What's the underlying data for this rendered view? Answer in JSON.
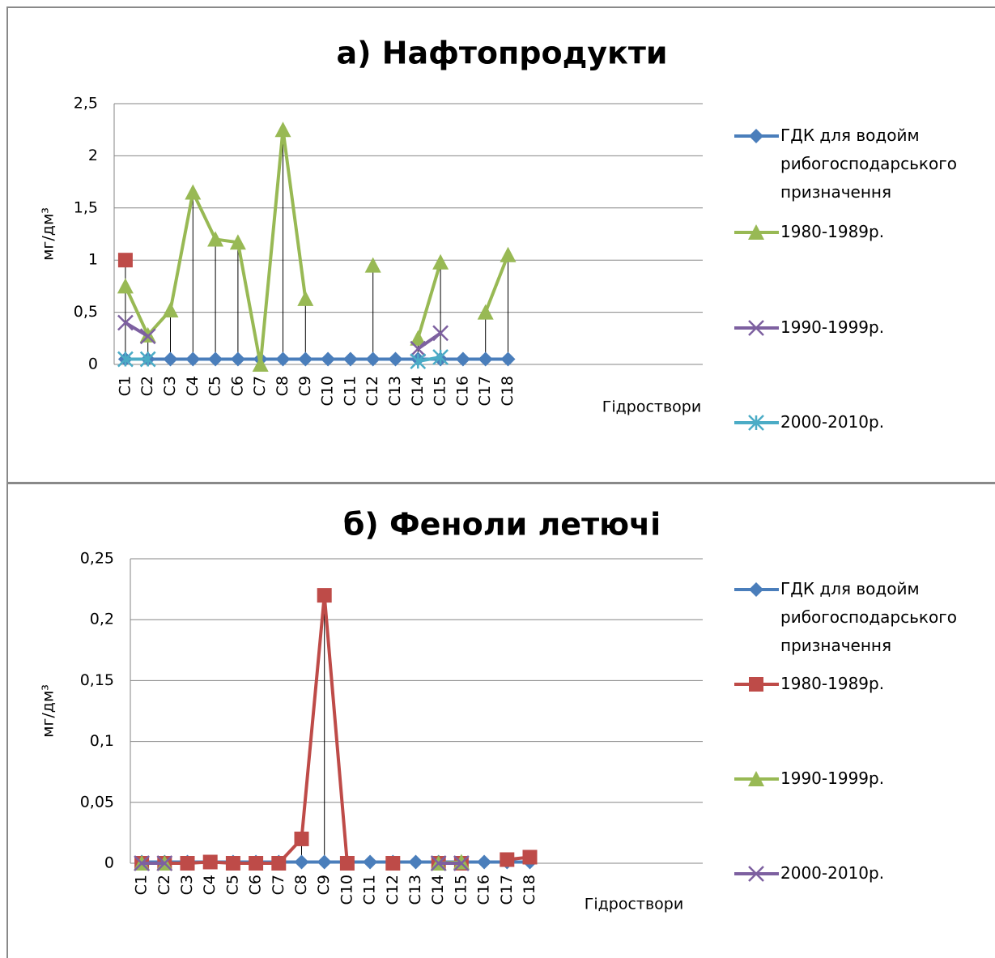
{
  "chart_data": [
    {
      "type": "line",
      "title": "а) Нафтопродукти",
      "x_label": "Гідроствори",
      "y_label": "мг/дм³",
      "categories": [
        "C1",
        "C2",
        "C3",
        "C4",
        "C5",
        "C6",
        "C7",
        "C8",
        "C9",
        "C10",
        "C11",
        "C12",
        "C13",
        "C14",
        "C15",
        "C16",
        "C17",
        "C18"
      ],
      "ylim": [
        0,
        2.5
      ],
      "yticks": [
        0,
        {
          "value": 0.5,
          "label": "0,5"
        },
        1,
        {
          "value": 1.5,
          "label": "1,5"
        },
        2,
        {
          "value": 2.5,
          "label": "2,5"
        }
      ],
      "grid": true,
      "high_low_lines": true,
      "legend": "right",
      "series": [
        {
          "name": "ГДК для водойм рибогосподарського призначення",
          "color": "#4a7ebb",
          "marker": "diamond",
          "values": [
            0.05,
            0.05,
            0.05,
            0.05,
            0.05,
            0.05,
            0.05,
            0.05,
            0.05,
            0.05,
            0.05,
            0.05,
            0.05,
            0.05,
            0.05,
            0.05,
            0.05,
            0.05
          ]
        },
        {
          "name": "1980-1989р.",
          "color": "#98b954",
          "marker": "triangle",
          "values": [
            0.75,
            0.28,
            0.52,
            1.65,
            1.2,
            1.17,
            0,
            2.25,
            0.63,
            null,
            null,
            0.95,
            null,
            0.25,
            0.98,
            null,
            0.5,
            1.05
          ]
        },
        {
          "name": "1990-1999р.",
          "color": "#7d60a0",
          "marker": "x",
          "values": [
            0.4,
            0.27,
            null,
            null,
            null,
            null,
            null,
            null,
            null,
            null,
            null,
            null,
            null,
            0.15,
            0.3,
            null,
            null,
            null
          ]
        },
        {
          "name": "2000-2010р.",
          "color": "#4bacc6",
          "marker": "star",
          "values": [
            0.05,
            0.05,
            null,
            null,
            null,
            null,
            null,
            null,
            null,
            null,
            null,
            null,
            null,
            0.03,
            0.07,
            null,
            null,
            null
          ]
        },
        {
          "color": "#be4b48",
          "marker": "square",
          "values": [
            1,
            null,
            null,
            null,
            null,
            null,
            null,
            null,
            null,
            null,
            null,
            null,
            null,
            null,
            null,
            null,
            null,
            null
          ]
        }
      ]
    },
    {
      "type": "line",
      "title": "б) Феноли летючі",
      "x_label": "Гідроствори",
      "y_label": "мг/дм³",
      "categories": [
        "C1",
        "C2",
        "C3",
        "C4",
        "C5",
        "C6",
        "C7",
        "C8",
        "C9",
        "C10",
        "C11",
        "C12",
        "C13",
        "C14",
        "C15",
        "C16",
        "C17",
        "C18"
      ],
      "ylim": [
        0,
        0.25
      ],
      "yticks": [
        0,
        {
          "value": 0.05,
          "label": "0,05"
        },
        {
          "value": 0.1,
          "label": "0,1"
        },
        {
          "value": 0.15,
          "label": "0,15"
        },
        {
          "value": 0.2,
          "label": "0,2"
        },
        {
          "value": 0.25,
          "label": "0,25"
        }
      ],
      "grid": true,
      "high_low_lines": true,
      "legend": "right",
      "series": [
        {
          "name": "ГДК для водойм рибогосподарського призначення",
          "color": "#4a7ebb",
          "marker": "diamond",
          "values": [
            0.001,
            0.001,
            0.001,
            0.001,
            0.001,
            0.001,
            0.001,
            0.001,
            0.001,
            0.001,
            0.001,
            0.001,
            0.001,
            0.001,
            0.001,
            0.001,
            0.001,
            0.001
          ]
        },
        {
          "name": "1980-1989р.",
          "color": "#be4b48",
          "marker": "square",
          "values": [
            0,
            0,
            0,
            0.001,
            0,
            0,
            0,
            0.02,
            0.22,
            0,
            null,
            0,
            null,
            0,
            0,
            null,
            0.003,
            0.005
          ]
        },
        {
          "name": "1990-1999р.",
          "color": "#98b954",
          "marker": "triangle",
          "values": [
            0,
            0,
            null,
            null,
            null,
            null,
            null,
            null,
            null,
            null,
            null,
            null,
            null,
            0,
            0.001,
            null,
            null,
            null
          ]
        },
        {
          "name": "2000-2010р.",
          "color": "#7d60a0",
          "marker": "x",
          "values": [
            0,
            0,
            null,
            null,
            null,
            null,
            null,
            null,
            null,
            null,
            null,
            null,
            null,
            0,
            0,
            null,
            null,
            null
          ]
        }
      ]
    }
  ]
}
